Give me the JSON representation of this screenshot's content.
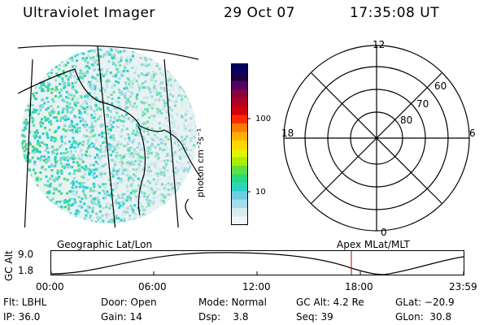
{
  "header": {
    "instrument": "Ultraviolet Imager",
    "date": "29 Oct 07",
    "time": "17:35:08 UT"
  },
  "colorbar": {
    "label": "photon cm⁻²s⁻¹",
    "ticks": [
      "100",
      "10"
    ],
    "colors": [
      "#000066",
      "#1a0040",
      "#550060",
      "#8a0040",
      "#b00020",
      "#d40010",
      "#ff2a00",
      "#ff7a00",
      "#ffb000",
      "#ffd800",
      "#e6f000",
      "#a8ec00",
      "#5fe040",
      "#2bd880",
      "#2cd4c0",
      "#6ad0e0",
      "#a8dce6",
      "#d6ecee",
      "#eef6f6"
    ]
  },
  "polar": {
    "labels": {
      "top": "12",
      "bottom": "0",
      "left": "18",
      "right": "6"
    },
    "rings": [
      "80",
      "70",
      "60"
    ]
  },
  "alt_panel": {
    "ylabel": "GC Alt",
    "yticks": [
      "9.0",
      "1.8"
    ],
    "left_caption": "Geographic Lat/Lon",
    "right_caption": "Apex MLat/MLT",
    "xticks": [
      "00:00",
      "06:00",
      "12:00",
      "18:00",
      "23:59"
    ],
    "marker_color": "#c00000"
  },
  "info": {
    "row1": {
      "filter": "Flt: LBHL",
      "door": "Door: Open",
      "mode": "Mode: Normal",
      "gcalt": "GC Alt: 4.2 Re",
      "glat": "GLat: −20.9"
    },
    "row2": {
      "ip": "IP: 36.0",
      "gain": "Gain: 14",
      "dsp": "Dsp:    3.8",
      "seq": "Seq: 39",
      "glon": "GLon:  30.8"
    }
  }
}
